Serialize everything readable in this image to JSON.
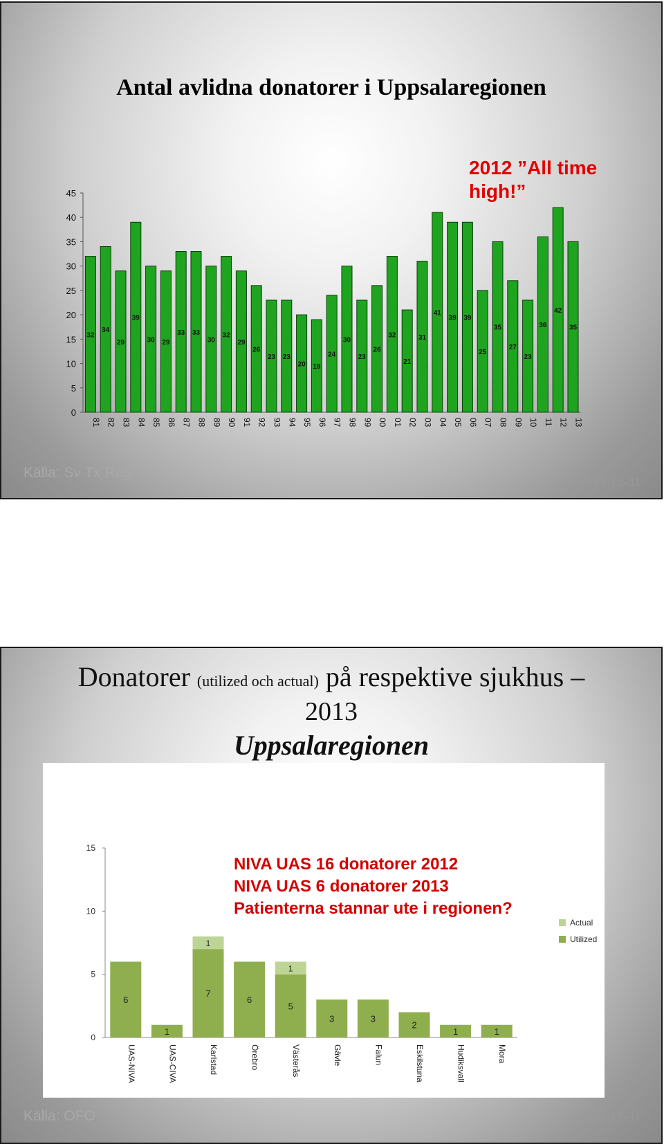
{
  "slide1": {
    "title": "Antal avlidna donatorer i Uppsalaregionen",
    "annotation": "2012 ”All time high!”",
    "source": "Källa:  Sv Tx Reg",
    "date": "2013-12-31"
  },
  "slide2": {
    "title_main": "Donatorer",
    "title_small": "(utilized och actual)",
    "title_rest": "på respektive sjukhus –",
    "title_year": "2013",
    "title_region": "Uppsalaregionen",
    "annotation_lines": [
      "NIVA UAS 16 donatorer 2012",
      "NIVA UAS   6 donatorer 2013",
      "Patienterna stannar ute i regionen?"
    ],
    "source": "Källa: OFO",
    "date": "2013-12-31"
  },
  "chart_data": [
    {
      "type": "bar",
      "title": "Antal avlidna donatorer i Uppsalaregionen",
      "categories": [
        "81",
        "82",
        "83",
        "84",
        "85",
        "86",
        "87",
        "88",
        "89",
        "90",
        "91",
        "92",
        "93",
        "94",
        "95",
        "96",
        "97",
        "98",
        "99",
        "00",
        "01",
        "02",
        "03",
        "04",
        "05",
        "06",
        "07",
        "08",
        "09",
        "10",
        "11",
        "12",
        "13"
      ],
      "values": [
        32,
        34,
        29,
        39,
        30,
        29,
        33,
        33,
        30,
        32,
        29,
        26,
        23,
        23,
        20,
        19,
        24,
        30,
        23,
        26,
        32,
        21,
        31,
        41,
        39,
        39,
        25,
        35,
        27,
        23,
        36,
        42,
        35
      ],
      "ylim": [
        0,
        45
      ],
      "yticks": [
        0,
        5,
        10,
        15,
        20,
        25,
        30,
        35,
        40,
        45
      ],
      "color": "#1fa41f",
      "grid": false,
      "legend": "none"
    },
    {
      "type": "bar",
      "stacked": true,
      "categories": [
        "UAS-NIVA",
        "UAS-CIVA",
        "Karlstad",
        "Örebro",
        "Västerås",
        "Gävle",
        "Falun",
        "Eskilstuna",
        "Hudiksvall",
        "Mora"
      ],
      "series": [
        {
          "name": "Utilized",
          "values": [
            6,
            1,
            7,
            6,
            5,
            3,
            3,
            2,
            1,
            1
          ],
          "color": "#8faf4f"
        },
        {
          "name": "Actual",
          "values": [
            0,
            0,
            1,
            0,
            1,
            0,
            0,
            0,
            0,
            0
          ],
          "color": "#bcd595"
        }
      ],
      "ylim": [
        0,
        15
      ],
      "yticks": [
        0,
        5,
        10,
        15
      ],
      "grid": false,
      "legend": "right"
    }
  ]
}
